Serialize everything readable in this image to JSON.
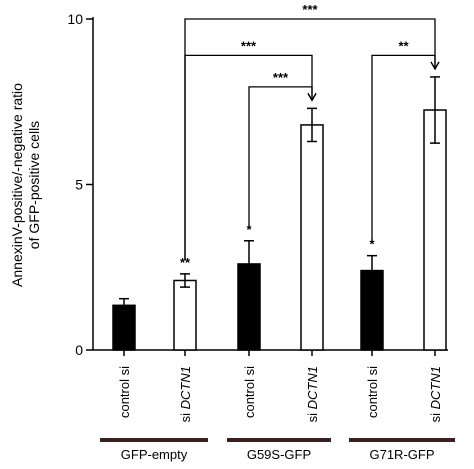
{
  "chart_data": {
    "type": "bar",
    "ylabel_lines": [
      "AnnexinV-positive/-negative ratio",
      "of GFP-positive cells"
    ],
    "ylim": [
      0,
      10
    ],
    "yticks": [
      0,
      5,
      10
    ],
    "categories": [
      {
        "prefix": "control si",
        "gene": ""
      },
      {
        "prefix": "si ",
        "gene": "DCTN1"
      },
      {
        "prefix": "control si",
        "gene": ""
      },
      {
        "prefix": "si ",
        "gene": "DCTN1"
      },
      {
        "prefix": "control si",
        "gene": ""
      },
      {
        "prefix": "si ",
        "gene": "DCTN1"
      }
    ],
    "groups": [
      "GFP-empty",
      "G59S-GFP",
      "G71R-GFP"
    ],
    "values": [
      1.35,
      2.1,
      2.6,
      6.8,
      2.4,
      7.25
    ],
    "errors": [
      0.2,
      0.2,
      0.7,
      0.5,
      0.45,
      1.0
    ],
    "fills": [
      "black",
      "white",
      "black",
      "white",
      "black",
      "white"
    ],
    "bar_marks": [
      "",
      "**",
      "*",
      "",
      "*",
      ""
    ],
    "comparisons": [
      {
        "from": 1,
        "to": 5,
        "label": "***",
        "y": 10.0
      },
      {
        "from": 1,
        "to": 3,
        "label": "***",
        "y": 8.9
      },
      {
        "from": 2,
        "to": 3,
        "label": "***",
        "y": 7.95
      },
      {
        "from": 4,
        "to": 5,
        "label": "**",
        "y": 8.9
      }
    ],
    "group_bar_color": "#3a1f1f",
    "grid": false
  }
}
